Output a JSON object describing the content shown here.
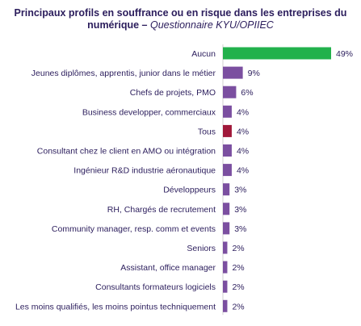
{
  "title": {
    "line1": "Principaux profils en souffrance ou en risque dans les entreprises du",
    "line2_bold": "numérique – ",
    "line2_italic": "Questionnaire KYU/OPIIEC"
  },
  "chart_data": {
    "type": "bar",
    "orientation": "horizontal",
    "title": "Principaux profils en souffrance ou en risque dans les entreprises du numérique – Questionnaire KYU/OPIIEC",
    "categories": [
      "Aucun",
      "Jeunes diplômes, apprentis, junior dans le métier",
      "Chefs de projets, PMO",
      "Business developper, commerciaux",
      "Tous",
      "Consultant chez le client en AMO ou intégration",
      "Ingénieur R&D industrie aéronautique",
      "Développeurs",
      "RH, Chargés de recrutement",
      "Community manager, resp. comm et events",
      "Seniors",
      "Assistant, office manager",
      "Consultants formateurs logiciels",
      "Les moins qualifiés, les moins pointus techniquement"
    ],
    "values": [
      49,
      9,
      6,
      4,
      4,
      4,
      4,
      3,
      3,
      3,
      2,
      2,
      2,
      2
    ],
    "labels": [
      "49%",
      "9%",
      "6%",
      "4%",
      "4%",
      "4%",
      "4%",
      "3%",
      "3%",
      "3%",
      "2%",
      "2%",
      "2%",
      "2%"
    ],
    "colors": [
      "#22b14c",
      "#7b4fa0",
      "#7b4fa0",
      "#7b4fa0",
      "#a0183a",
      "#7b4fa0",
      "#7b4fa0",
      "#7b4fa0",
      "#7b4fa0",
      "#7b4fa0",
      "#7b4fa0",
      "#7b4fa0",
      "#7b4fa0",
      "#7b4fa0"
    ],
    "unit": "%",
    "xlim": [
      0,
      49
    ],
    "grid": false,
    "legend": "none"
  }
}
